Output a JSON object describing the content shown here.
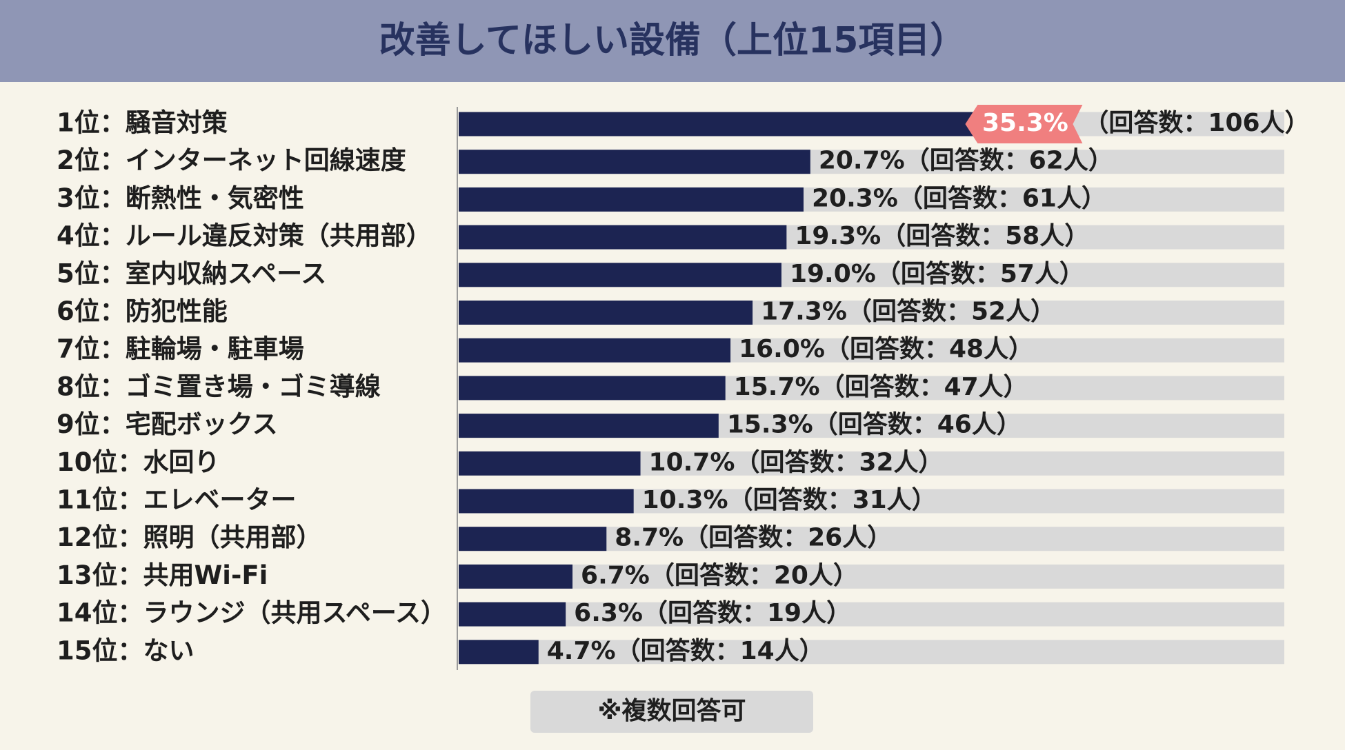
{
  "chart_data": {
    "type": "hbar",
    "title": "改善してほしい設備（上位15項目）",
    "categories": [
      "1位：騒音対策",
      "2位：インターネット回線速度",
      "3位：断熱性・気密性",
      "4位：ルール違反対策（共用部）",
      "5位：室内収納スペース",
      "6位：防犯性能",
      "7位：駐輪場・駐車場",
      "8位：ゴミ置き場・ゴミ導線",
      "9位：宅配ボックス",
      "10位：水回り",
      "11位：エレベーター",
      "12位：照明（共用部）",
      "13位：共用Wi-Fi",
      "14位：ラウンジ（共用スペース）",
      "15位：ない"
    ],
    "values": [
      35.3,
      20.7,
      20.3,
      19.3,
      19.0,
      17.3,
      16.0,
      15.7,
      15.3,
      10.7,
      10.3,
      8.7,
      6.7,
      6.3,
      4.7
    ],
    "value_labels": [
      "35.3%",
      "20.7%",
      "20.3%",
      "19.3%",
      "19.0%",
      "17.3%",
      "16.0%",
      "15.7%",
      "15.3%",
      "10.7%",
      "10.3%",
      "8.7%",
      "6.7%",
      "6.3%",
      "4.7%"
    ],
    "count_labels": [
      "（回答数：106人）",
      "（回答数：62人）",
      "（回答数：61人）",
      "（回答数：58人）",
      "（回答数：57人）",
      "（回答数：52人）",
      "（回答数：48人）",
      "（回答数：47人）",
      "（回答数：46人）",
      "（回答数：32人）",
      "（回答数：31人）",
      "（回答数：26人）",
      "（回答数：20人）",
      "（回答数：19人）",
      "（回答数：14人）"
    ],
    "xlim": [
      0,
      48.6
    ],
    "color": "#1c2452",
    "highlight_color": "#f07f7f",
    "footnote": "※複数回答可"
  }
}
